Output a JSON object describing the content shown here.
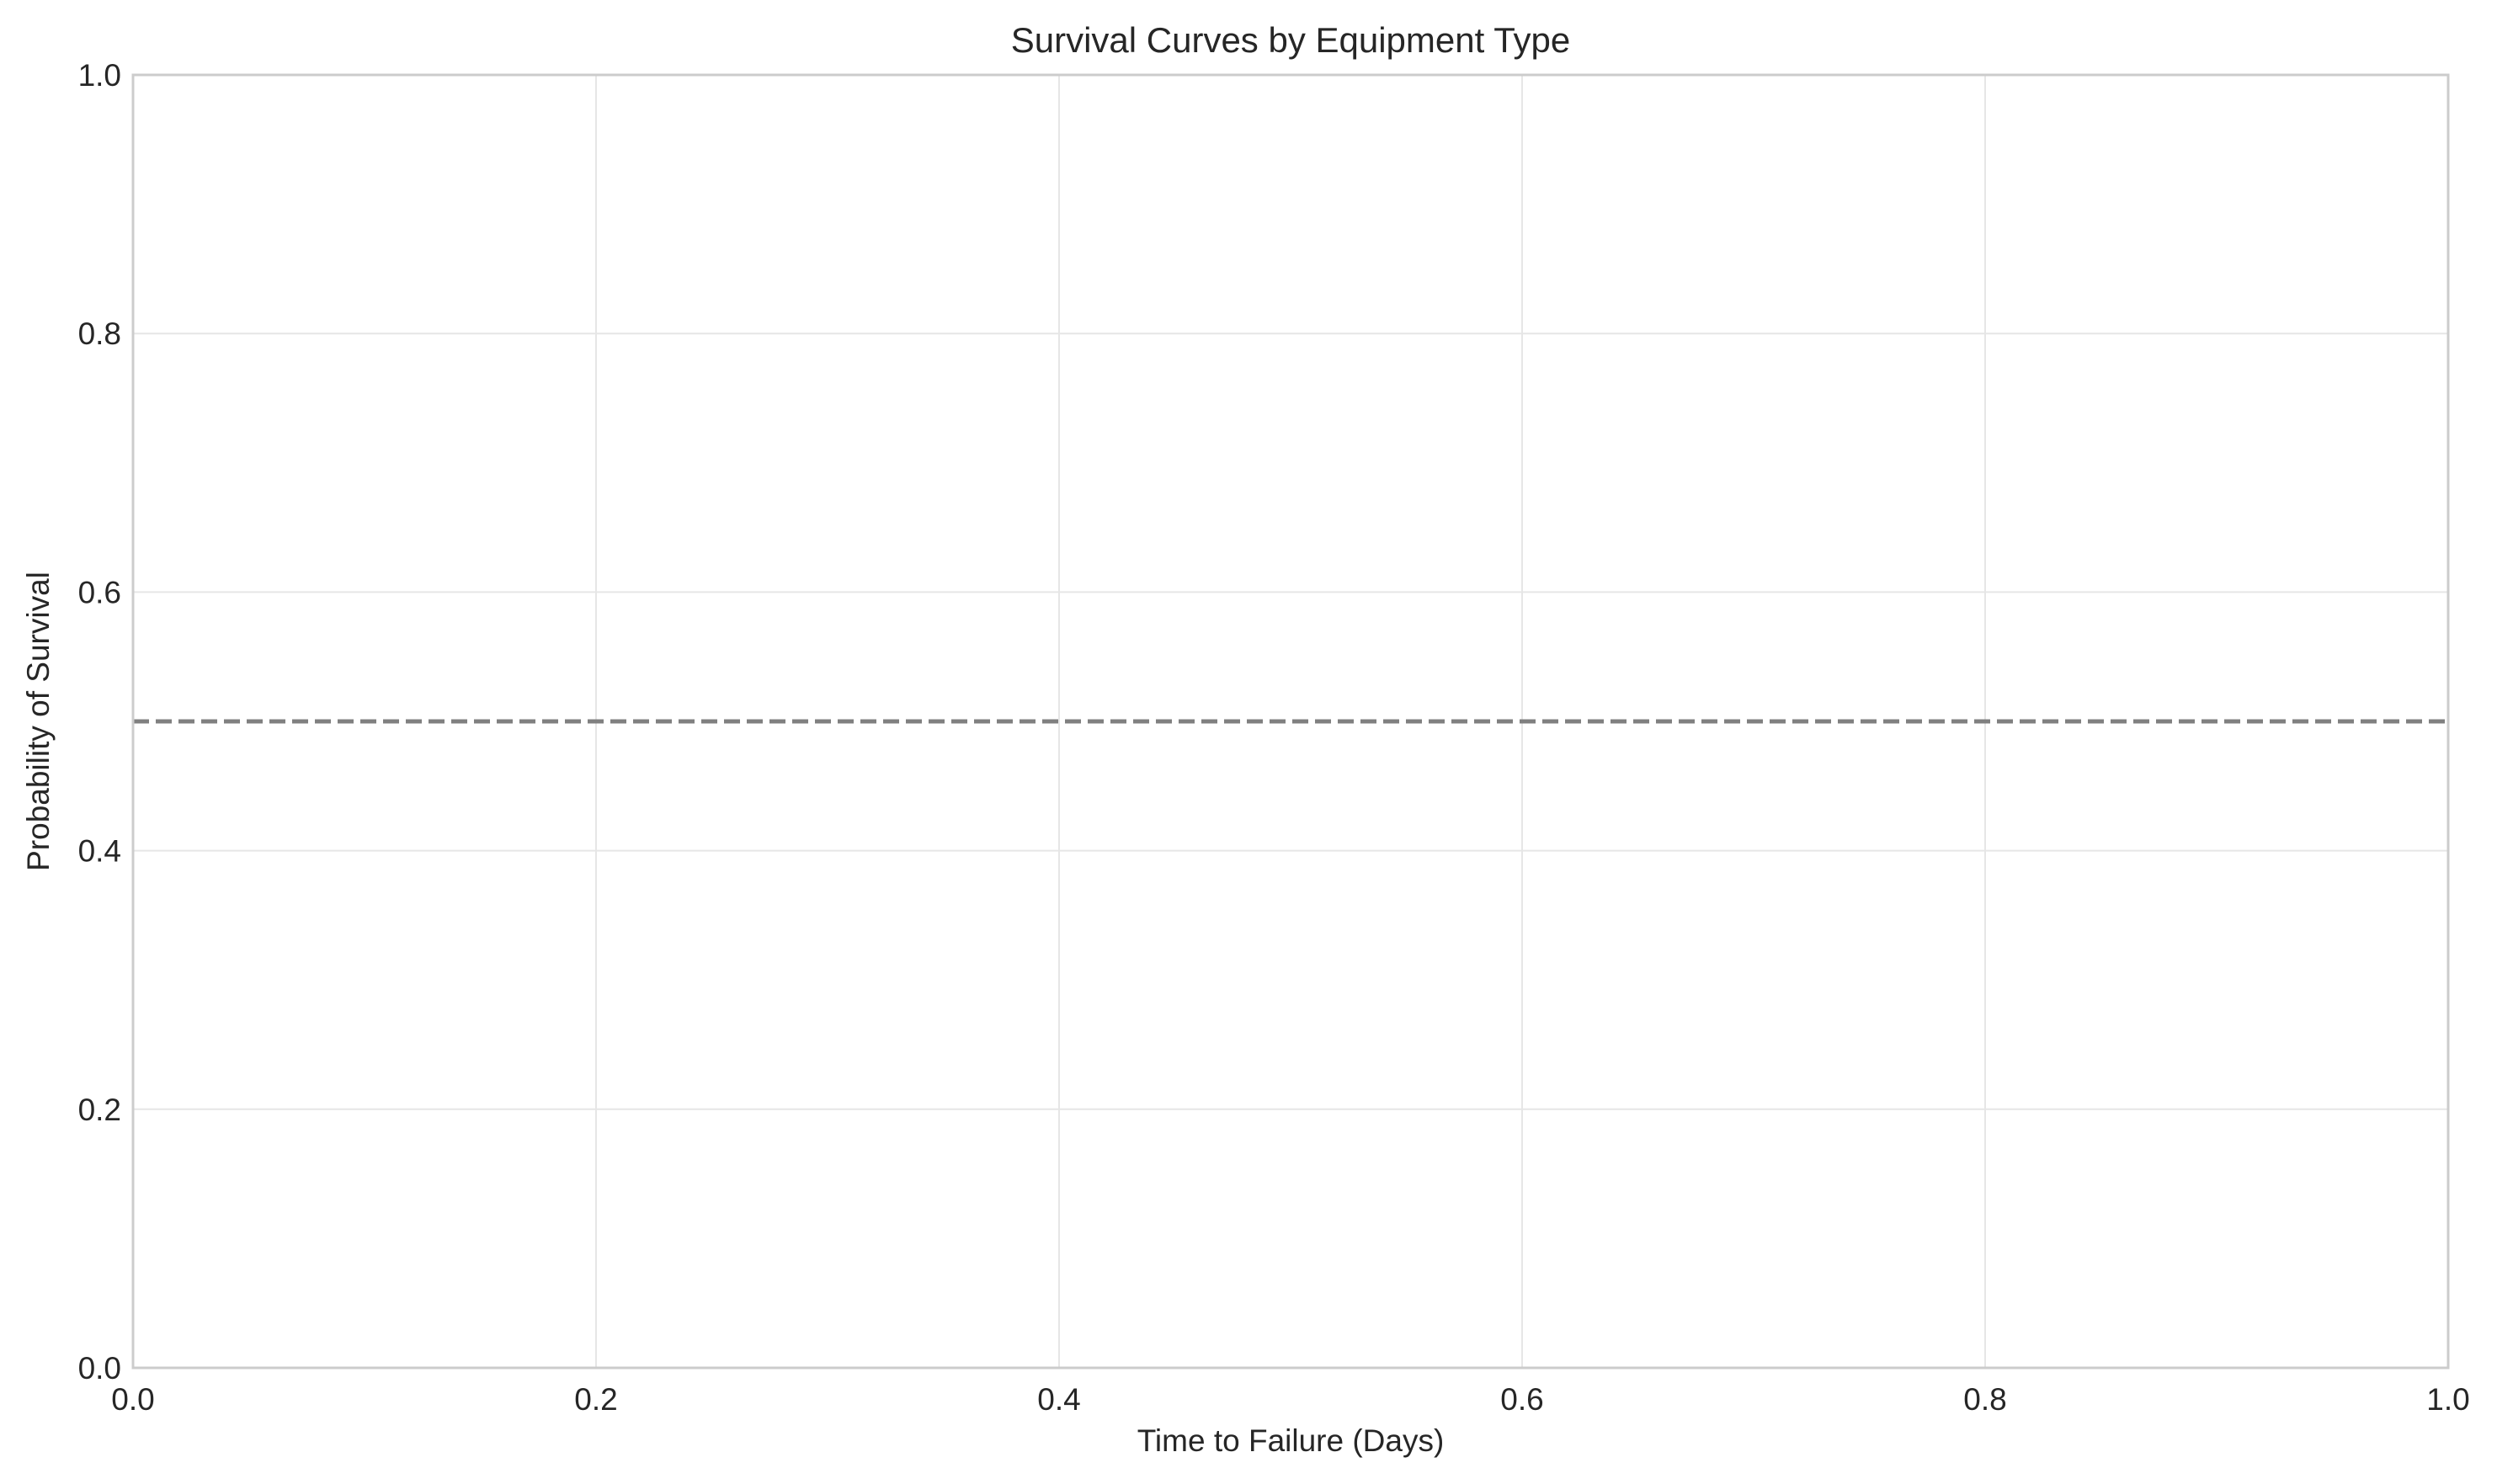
{
  "chart_data": {
    "type": "line",
    "title": "Survival Curves by Equipment Type",
    "xlabel": "Time to Failure (Days)",
    "ylabel": "Probability of Survival",
    "xlim": [
      0.0,
      1.0
    ],
    "ylim": [
      0.0,
      1.0
    ],
    "x_ticks": [
      "0.0",
      "0.2",
      "0.4",
      "0.6",
      "0.8",
      "1.0"
    ],
    "y_ticks": [
      "0.0",
      "0.2",
      "0.4",
      "0.6",
      "0.8",
      "1.0"
    ],
    "grid": true,
    "series": [],
    "reference_lines": [
      {
        "orientation": "horizontal",
        "y": 0.5,
        "style": "dashed",
        "color": "#808080"
      }
    ]
  },
  "colors": {
    "background": "#ffffff",
    "grid": "#e6e6e6",
    "spine": "#cccccc",
    "text": "#262626",
    "reference_line": "#808080"
  }
}
